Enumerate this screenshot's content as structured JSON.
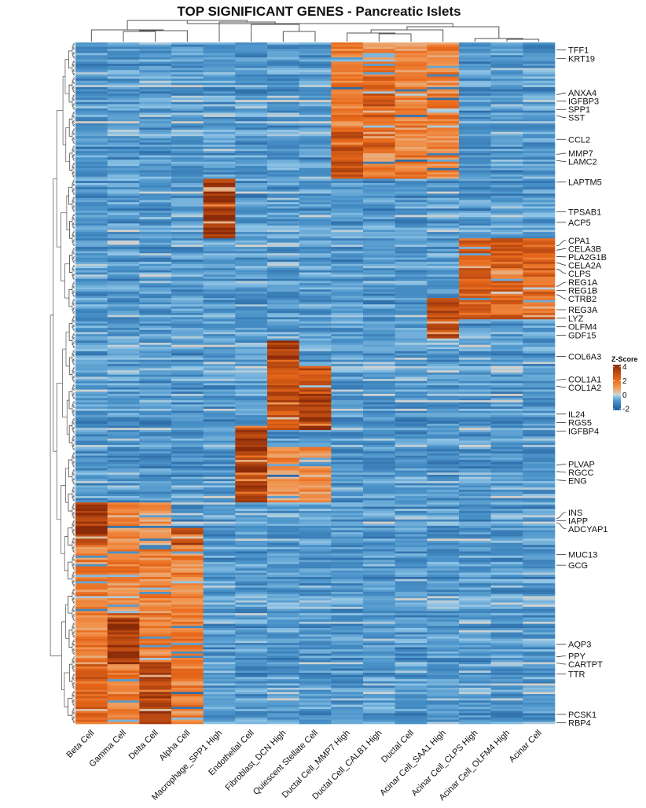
{
  "chart_data": {
    "type": "heatmap",
    "title": "TOP SIGNIFICANT GENES - Pancreatic Islets",
    "columns": [
      "Beta Cell",
      "Gamma Cell",
      "Delta Cell",
      "Alpha Cell",
      "Macrophage_SPP1 High",
      "Endothelial Cell",
      "Fibroblast_DCN High",
      "Quiescent Stellate Cell",
      "Ductal Cell_MMP7 High",
      "Ductal Cell_CALB1 High",
      "Ductal Cell",
      "Acinar Cell_SAA1 High",
      "Acinar Cell_CLPS High",
      "Acinar Cell_OLFM4 High",
      "Acinar Cell"
    ],
    "n_rows": 320,
    "baseline_z": -0.8,
    "blocks": [
      {
        "rows": [
          0,
          64
        ],
        "columns": [
          8,
          9,
          10,
          11
        ],
        "z": 1.6
      },
      {
        "rows": [
          16,
          50
        ],
        "columns": [
          9
        ],
        "z": 2.6
      },
      {
        "rows": [
          40,
          64
        ],
        "columns": [
          8
        ],
        "z": 2.8
      },
      {
        "rows": [
          64,
          92
        ],
        "columns": [
          4
        ],
        "z": 3.8
      },
      {
        "rows": [
          92,
          130
        ],
        "columns": [
          12,
          13,
          14
        ],
        "z": 2.4
      },
      {
        "rows": [
          120,
          140
        ],
        "columns": [
          11
        ],
        "z": 3.2
      },
      {
        "rows": [
          140,
          152
        ],
        "columns": [
          6
        ],
        "z": 3.8
      },
      {
        "rows": [
          152,
          182
        ],
        "columns": [
          6,
          7
        ],
        "z": 3.0
      },
      {
        "rows": [
          165,
          182
        ],
        "columns": [
          7
        ],
        "z": 3.8
      },
      {
        "rows": [
          180,
          216
        ],
        "columns": [
          5
        ],
        "z": 3.8
      },
      {
        "rows": [
          190,
          216
        ],
        "columns": [
          6,
          7
        ],
        "z": 1.2
      },
      {
        "rows": [
          216,
          236
        ],
        "columns": [
          0
        ],
        "z": 3.8
      },
      {
        "rows": [
          216,
          236
        ],
        "columns": [
          1,
          2
        ],
        "z": 1.3
      },
      {
        "rows": [
          228,
          248
        ],
        "columns": [
          3
        ],
        "z": 3.6
      },
      {
        "rows": [
          236,
          320
        ],
        "columns": [
          0,
          1,
          2,
          3
        ],
        "z": 1.6
      },
      {
        "rows": [
          268,
          292
        ],
        "columns": [
          1
        ],
        "z": 3.6
      },
      {
        "rows": [
          290,
          320
        ],
        "columns": [
          2
        ],
        "z": 3.4
      },
      {
        "rows": [
          292,
          320
        ],
        "columns": [
          0
        ],
        "z": 2.4
      }
    ],
    "row_labels": [
      {
        "gene": "TFF1",
        "row": 3
      },
      {
        "gene": "KRT19",
        "row": 7
      },
      {
        "gene": "ANXA4",
        "row": 24
      },
      {
        "gene": "IGFBP3",
        "row": 27
      },
      {
        "gene": "SPP1",
        "row": 31
      },
      {
        "gene": "SST",
        "row": 34
      },
      {
        "gene": "CCL2",
        "row": 45
      },
      {
        "gene": "MMP7",
        "row": 52
      },
      {
        "gene": "LAMC2",
        "row": 55
      },
      {
        "gene": "LAPTM5",
        "row": 65
      },
      {
        "gene": "TPSAB1",
        "row": 79
      },
      {
        "gene": "ACP5",
        "row": 84
      },
      {
        "gene": "CPA1",
        "row": 95
      },
      {
        "gene": "CELA3B",
        "row": 97
      },
      {
        "gene": "PLA2G1B",
        "row": 100
      },
      {
        "gene": "CELA2A",
        "row": 103
      },
      {
        "gene": "CLPS",
        "row": 106
      },
      {
        "gene": "REG1A",
        "row": 114
      },
      {
        "gene": "REG1B",
        "row": 116
      },
      {
        "gene": "CTRB2",
        "row": 118
      },
      {
        "gene": "REG3A",
        "row": 125
      },
      {
        "gene": "LYZ",
        "row": 129
      },
      {
        "gene": "OLFM4",
        "row": 133
      },
      {
        "gene": "GDF15",
        "row": 137
      },
      {
        "gene": "COL6A3",
        "row": 147
      },
      {
        "gene": "COL1A1",
        "row": 158
      },
      {
        "gene": "COL1A2",
        "row": 161
      },
      {
        "gene": "IL24",
        "row": 174
      },
      {
        "gene": "RGS5",
        "row": 178
      },
      {
        "gene": "IGFBP4",
        "row": 182
      },
      {
        "gene": "PLVAP",
        "row": 198
      },
      {
        "gene": "RGCC",
        "row": 201
      },
      {
        "gene": "ENG",
        "row": 205
      },
      {
        "gene": "INS",
        "row": 223
      },
      {
        "gene": "IAPP",
        "row": 224
      },
      {
        "gene": "ADCYAP1",
        "row": 225
      },
      {
        "gene": "MUC13",
        "row": 240
      },
      {
        "gene": "GCG",
        "row": 245
      },
      {
        "gene": "AQP3",
        "row": 282
      },
      {
        "gene": "PPY",
        "row": 288
      },
      {
        "gene": "CARTPT",
        "row": 291
      },
      {
        "gene": "TTR",
        "row": 296
      },
      {
        "gene": "PCSK1",
        "row": 315
      },
      {
        "gene": "RBP4",
        "row": 319
      }
    ],
    "legend": {
      "title": "Z-Score",
      "ticks": [
        4,
        2,
        0,
        -2
      ],
      "range": [
        -2.2,
        4.3
      ]
    },
    "colors": {
      "low": "#1f5a99",
      "mid_low": "#4a93c9",
      "light": "#8fc4e6",
      "zero": "#d3d3d0",
      "mid_high": "#f19955",
      "high": "#e8681a",
      "max": "#8a2a08"
    }
  }
}
